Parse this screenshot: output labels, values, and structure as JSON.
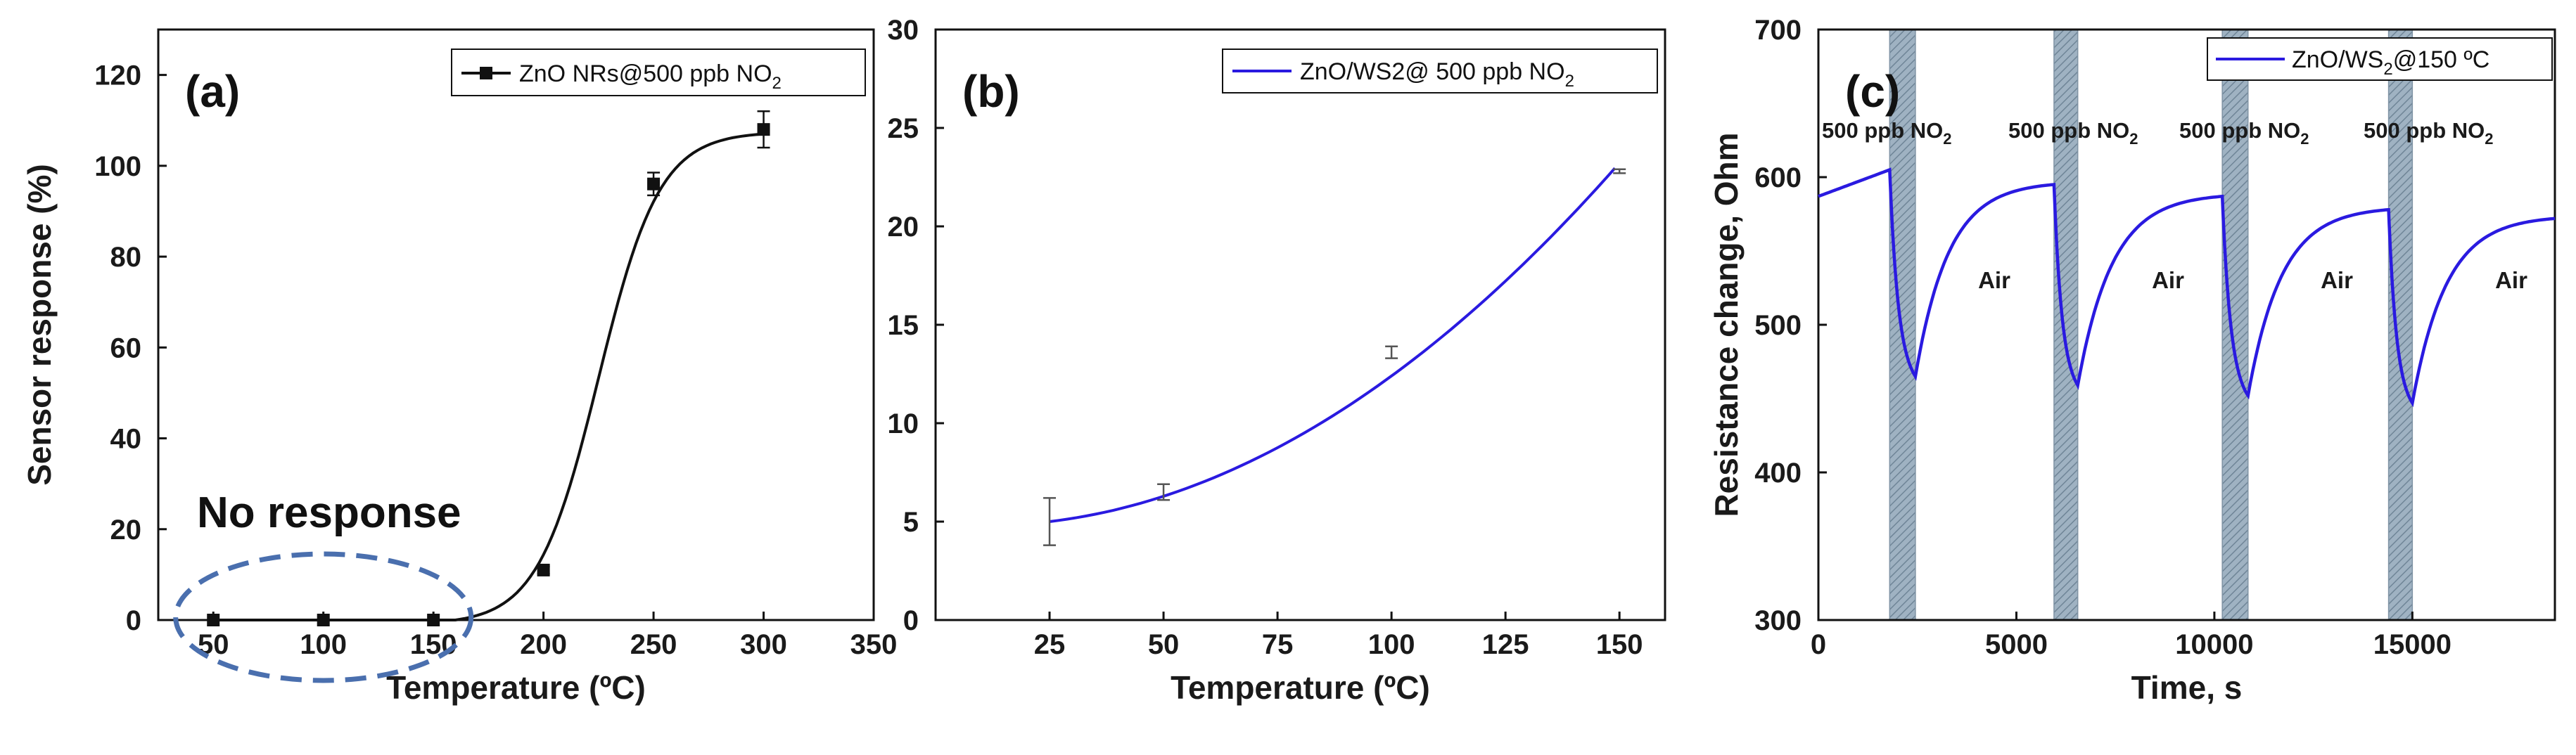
{
  "chart_data": [
    {
      "panel": "(a)",
      "type": "line",
      "xlabel": "Temperature (ºC)",
      "ylabel": "Sensor response (%)",
      "xlim": [
        25,
        350
      ],
      "ylim": [
        0,
        130
      ],
      "xticks": [
        50,
        100,
        150,
        200,
        250,
        300,
        350
      ],
      "yticks": [
        0,
        20,
        40,
        60,
        80,
        100,
        120
      ],
      "grid": false,
      "legend_position": "top-right",
      "series": [
        {
          "name": "ZnO NRs@500 ppb NO2",
          "legend_main": "ZnO NRs@500 ppb NO",
          "legend_sub": "2",
          "color": "#111111",
          "marker": "square",
          "x": [
            50,
            100,
            150,
            200,
            250,
            300
          ],
          "y": [
            0,
            0,
            0,
            11,
            96,
            108
          ],
          "error": [
            0,
            0,
            0,
            0.8,
            2.5,
            4
          ]
        }
      ],
      "annotation": "No response"
    },
    {
      "panel": "(b)",
      "type": "line",
      "xlabel": "Temperature (ºC)",
      "ylabel": "",
      "xlim": [
        0,
        160
      ],
      "ylim": [
        0,
        30
      ],
      "xticks": [
        25,
        50,
        75,
        100,
        125,
        150
      ],
      "yticks": [
        0,
        5,
        10,
        15,
        20,
        25,
        30
      ],
      "grid": false,
      "legend_position": "top-right",
      "series": [
        {
          "name": "ZnO/WS2@ 500 ppb NO2",
          "legend_main": "ZnO/WS2@ 500 ppb NO",
          "legend_sub": "2",
          "color": "#2a1ae0",
          "x": [
            25,
            50,
            100,
            150
          ],
          "y": [
            5.0,
            6.5,
            13.6,
            22.8
          ],
          "error": [
            1.2,
            0.4,
            0.3,
            0.1
          ]
        }
      ]
    },
    {
      "panel": "(c)",
      "type": "line",
      "xlabel": "Time, s",
      "ylabel": "Resistance change, Ohm",
      "xlim": [
        0,
        18600
      ],
      "ylim": [
        300,
        700
      ],
      "xticks": [
        0,
        5000,
        10000,
        15000
      ],
      "yticks": [
        300,
        400,
        500,
        600,
        700
      ],
      "grid": false,
      "legend_position": "top-right",
      "series": [
        {
          "name": "ZnO/WS2@150 ºC",
          "legend_main": "ZnO/WS",
          "legend_sub": "2",
          "legend_tail": "@150 ºC",
          "color": "#2a1ae0",
          "baseline_start": 587,
          "cycles": [
            {
              "on": 1800,
              "off": 2450,
              "peak": 605,
              "min": 465
            },
            {
              "on": 5950,
              "off": 6550,
              "peak": 595,
              "min": 459
            },
            {
              "on": 10200,
              "off": 10850,
              "peak": 587,
              "min": 452
            },
            {
              "on": 14400,
              "off": 15000,
              "peak": 578,
              "min": 447
            }
          ],
          "end_value": 572
        }
      ],
      "exposure_label_main": "500 ppb NO",
      "exposure_label_sub": "2",
      "recovery_label": "Air"
    }
  ]
}
